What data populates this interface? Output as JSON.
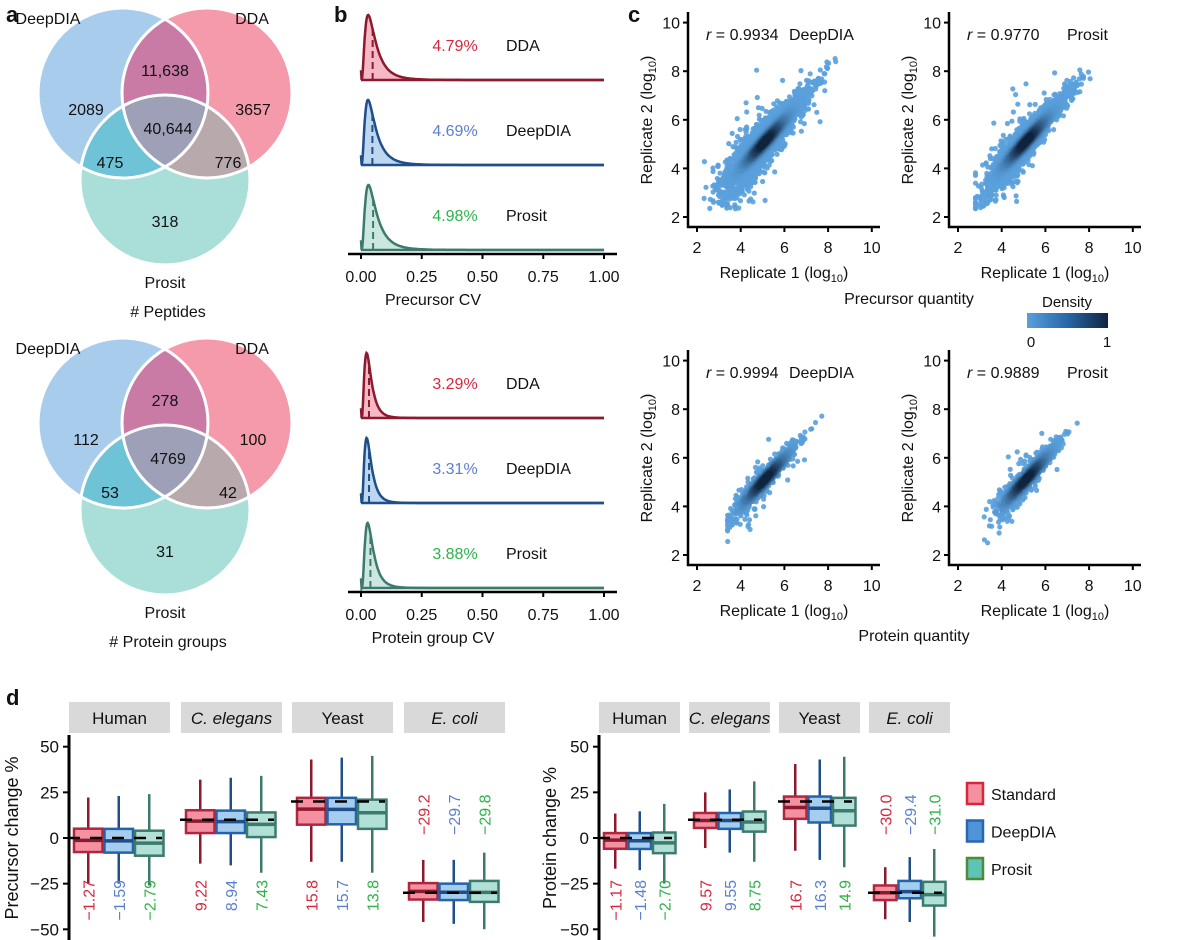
{
  "panel_labels": [
    "a",
    "b",
    "c",
    "d"
  ],
  "colors": {
    "dda": "#f49aaa",
    "deepdia": "#a8cdec",
    "prosit": "#aadfd9",
    "dda_deepdia": "#c97ba6",
    "all_three": "#9da0b6",
    "deepdia_prosit": "#6fc3d6",
    "dda_prosit": "#b8a9ad",
    "standard_line": "#8b1a2e",
    "deepdia_line": "#1f4e89",
    "prosit_line": "#3d7a6e",
    "standard_text": "#d7263d",
    "deepdia_text": "#5b7fcf",
    "prosit_text": "#2db34a"
  },
  "chart_data": [
    {
      "type": "venn",
      "sets": [
        "DeepDIA",
        "DDA",
        "Prosit"
      ],
      "regions": [
        {
          "sets": [
            "DeepDIA"
          ],
          "label": "2089"
        },
        {
          "sets": [
            "DeepDIA",
            "DDA"
          ],
          "label": "11,638"
        },
        {
          "sets": [
            "DDA"
          ],
          "label": "3657"
        },
        {
          "sets": [
            "DeepDIA",
            "DDA",
            "Prosit"
          ],
          "label": "40,644"
        },
        {
          "sets": [
            "DeepDIA",
            "Prosit"
          ],
          "label": "475"
        },
        {
          "sets": [
            "DDA",
            "Prosit"
          ],
          "label": "776"
        },
        {
          "sets": [
            "Prosit"
          ],
          "label": "318"
        }
      ],
      "caption": "# Peptides"
    },
    {
      "type": "venn",
      "sets": [
        "DeepDIA",
        "DDA",
        "Prosit"
      ],
      "regions": [
        {
          "sets": [
            "DeepDIA"
          ],
          "label": "112"
        },
        {
          "sets": [
            "DeepDIA",
            "DDA"
          ],
          "label": "278"
        },
        {
          "sets": [
            "DDA"
          ],
          "label": "100"
        },
        {
          "sets": [
            "DeepDIA",
            "DDA",
            "Prosit"
          ],
          "label": "4769"
        },
        {
          "sets": [
            "DeepDIA",
            "Prosit"
          ],
          "label": "53"
        },
        {
          "sets": [
            "DDA",
            "Prosit"
          ],
          "label": "42"
        },
        {
          "sets": [
            "Prosit"
          ],
          "label": "31"
        }
      ],
      "caption": "# Protein groups"
    },
    {
      "type": "density",
      "xlabel": "Precursor CV",
      "xlim": [
        0,
        1
      ],
      "xticks": [
        "0.00",
        "0.25",
        "0.50",
        "0.75",
        "1.00"
      ],
      "series": [
        {
          "name": "DDA",
          "median": 0.0479,
          "median_label": "4.79%",
          "line": "#8b1a2e",
          "fill": "#f5b8c4",
          "text": "#d7263d"
        },
        {
          "name": "DeepDIA",
          "median": 0.0469,
          "median_label": "4.69%",
          "line": "#1f4e89",
          "fill": "#bcd7ef",
          "text": "#5b7fcf"
        },
        {
          "name": "Prosit",
          "median": 0.0498,
          "median_label": "4.98%",
          "line": "#3d7a6e",
          "fill": "#cce6e0",
          "text": "#2db34a"
        }
      ]
    },
    {
      "type": "density",
      "xlabel": "Protein group CV",
      "xlim": [
        0,
        1
      ],
      "xticks": [
        "0.00",
        "0.25",
        "0.50",
        "0.75",
        "1.00"
      ],
      "series": [
        {
          "name": "DDA",
          "median": 0.0329,
          "median_label": "3.29%",
          "line": "#8b1a2e",
          "fill": "#f5b8c4",
          "text": "#d7263d"
        },
        {
          "name": "DeepDIA",
          "median": 0.0331,
          "median_label": "3.31%",
          "line": "#1f4e89",
          "fill": "#bcd7ef",
          "text": "#5b7fcf"
        },
        {
          "name": "Prosit",
          "median": 0.0388,
          "median_label": "3.88%",
          "line": "#3d7a6e",
          "fill": "#cce6e0",
          "text": "#2db34a"
        }
      ]
    },
    {
      "type": "scatter",
      "group": "Precursor quantity",
      "r_symbol": "r",
      "r_value": " = 0.9934",
      "name": "DeepDIA",
      "xlabel": {
        "main": "Replicate 1 (log",
        "sub": "10",
        "end": ")"
      },
      "ylabel": {
        "main": "Replicate 2 (log",
        "sub": "10",
        "end": ")"
      },
      "xlim": [
        2,
        10
      ],
      "ylim": [
        2,
        10
      ],
      "ticks": [
        "2",
        "4",
        "6",
        "8",
        "10"
      ]
    },
    {
      "type": "scatter",
      "group": "Precursor quantity",
      "r_symbol": "r",
      "r_value": " = 0.9770",
      "name": "Prosit",
      "xlabel": {
        "main": "Replicate 1 (log",
        "sub": "10",
        "end": ")"
      },
      "ylabel": {
        "main": "Replicate 2 (log",
        "sub": "10",
        "end": ")"
      },
      "xlim": [
        2,
        10
      ],
      "ylim": [
        2,
        10
      ],
      "ticks": [
        "2",
        "4",
        "6",
        "8",
        "10"
      ]
    },
    {
      "type": "scatter",
      "group": "Protein quantity",
      "r_symbol": "r",
      "r_value": " = 0.9994",
      "name": "DeepDIA",
      "xlabel": {
        "main": "Replicate 1 (log",
        "sub": "10",
        "end": ")"
      },
      "ylabel": {
        "main": "Replicate 2 (log",
        "sub": "10",
        "end": ")"
      },
      "xlim": [
        2,
        10
      ],
      "ylim": [
        2,
        10
      ],
      "ticks": [
        "2",
        "4",
        "6",
        "8",
        "10"
      ]
    },
    {
      "type": "scatter",
      "group": "Protein quantity",
      "r_symbol": "r",
      "r_value": " = 0.9889",
      "name": "Prosit",
      "xlabel": {
        "main": "Replicate 1 (log",
        "sub": "10",
        "end": ")"
      },
      "ylabel": {
        "main": "Replicate 2 (log",
        "sub": "10",
        "end": ")"
      },
      "xlim": [
        2,
        10
      ],
      "ylim": [
        2,
        10
      ],
      "ticks": [
        "2",
        "4",
        "6",
        "8",
        "10"
      ]
    },
    {
      "type": "box",
      "ylabel": "Precursor change %",
      "ylim": [
        -55,
        55
      ],
      "yticks": [
        "50",
        "25",
        "0",
        "−25",
        "−50"
      ],
      "ytick_values": [
        50,
        25,
        0,
        -25,
        -50
      ],
      "facets": [
        {
          "name": "Human",
          "italic": false,
          "expected": 0,
          "groups": [
            {
              "series": "Standard",
              "whisker_low": -25,
              "q1": -7.7,
              "median": -1.27,
              "q3": 5.1,
              "whisker_high": 22.2,
              "label": "−1.27"
            },
            {
              "series": "DeepDIA",
              "whisker_low": -25,
              "q1": -8,
              "median": -1.59,
              "q3": 5,
              "whisker_high": 23,
              "label": "−1.59"
            },
            {
              "series": "Prosit",
              "whisker_low": -26,
              "q1": -9.7,
              "median": -2.79,
              "q3": 4,
              "whisker_high": 24,
              "label": "−2.79"
            }
          ]
        },
        {
          "name": "C. elegans",
          "italic": true,
          "expected": 10,
          "groups": [
            {
              "series": "Standard",
              "whisker_low": -14,
              "q1": 2.7,
              "median": 9.22,
              "q3": 15.2,
              "whisker_high": 32,
              "label": "9.22"
            },
            {
              "series": "DeepDIA",
              "whisker_low": -15,
              "q1": 2.7,
              "median": 8.94,
              "q3": 15,
              "whisker_high": 33,
              "label": "8.94"
            },
            {
              "series": "Prosit",
              "whisker_low": -19,
              "q1": 0.5,
              "median": 7.43,
              "q3": 14,
              "whisker_high": 34,
              "label": "7.43"
            }
          ]
        },
        {
          "name": "Yeast",
          "italic": false,
          "expected": 20,
          "groups": [
            {
              "series": "Standard",
              "whisker_low": -13,
              "q1": 7.3,
              "median": 15.8,
              "q3": 22,
              "whisker_high": 43,
              "label": "15.8"
            },
            {
              "series": "DeepDIA",
              "whisker_low": -13,
              "q1": 7.5,
              "median": 15.7,
              "q3": 22,
              "whisker_high": 44,
              "label": "15.7"
            },
            {
              "series": "Prosit",
              "whisker_low": -19,
              "q1": 5,
              "median": 13.8,
              "q3": 21,
              "whisker_high": 45,
              "label": "13.8"
            }
          ]
        },
        {
          "name": "E. coli",
          "italic": true,
          "expected": -30,
          "groups": [
            {
              "series": "Standard",
              "whisker_low": -46,
              "q1": -33.7,
              "median": -29.2,
              "q3": -24.7,
              "whisker_high": -12,
              "label": "−29.2"
            },
            {
              "series": "DeepDIA",
              "whisker_low": -47,
              "q1": -34,
              "median": -29.7,
              "q3": -25,
              "whisker_high": -12,
              "label": "−29.7"
            },
            {
              "series": "Prosit",
              "whisker_low": -50,
              "q1": -35,
              "median": -29.8,
              "q3": -23.5,
              "whisker_high": -8,
              "label": "−29.8"
            }
          ]
        }
      ]
    },
    {
      "type": "box",
      "ylabel": "Protein change %",
      "ylim": [
        -55,
        55
      ],
      "yticks": [
        "50",
        "25",
        "0",
        "−25",
        "−50"
      ],
      "ytick_values": [
        50,
        25,
        0,
        -25,
        -50
      ],
      "facets": [
        {
          "name": "Human",
          "italic": false,
          "expected": 0,
          "groups": [
            {
              "series": "Standard",
              "whisker_low": -16.8,
              "q1": -5.9,
              "median": -1.17,
              "q3": 2.7,
              "whisker_high": 13.4,
              "label": "−1.17"
            },
            {
              "series": "DeepDIA",
              "whisker_low": -17.6,
              "q1": -6,
              "median": -1.48,
              "q3": 2.7,
              "whisker_high": 14.6,
              "label": "−1.48"
            },
            {
              "series": "Prosit",
              "whisker_low": -25,
              "q1": -8.3,
              "median": -2.7,
              "q3": 3,
              "whisker_high": 18.7,
              "label": "−2.70"
            }
          ]
        },
        {
          "name": "C. elegans",
          "italic": true,
          "expected": 10,
          "groups": [
            {
              "series": "Standard",
              "whisker_low": -5.5,
              "q1": 5.5,
              "median": 9.57,
              "q3": 13.7,
              "whisker_high": 25,
              "label": "9.57"
            },
            {
              "series": "DeepDIA",
              "whisker_low": -8,
              "q1": 5,
              "median": 9.55,
              "q3": 13.7,
              "whisker_high": 26.6,
              "label": "9.55"
            },
            {
              "series": "Prosit",
              "whisker_low": -13,
              "q1": 3.5,
              "median": 8.75,
              "q3": 14.5,
              "whisker_high": 31,
              "label": "8.75"
            }
          ]
        },
        {
          "name": "Yeast",
          "italic": false,
          "expected": 20,
          "groups": [
            {
              "series": "Standard",
              "whisker_low": -7,
              "q1": 10.5,
              "median": 16.7,
              "q3": 22.7,
              "whisker_high": 40.5,
              "label": "16.7"
            },
            {
              "series": "DeepDIA",
              "whisker_low": -12,
              "q1": 8.5,
              "median": 16.3,
              "q3": 22.7,
              "whisker_high": 43,
              "label": "16.3"
            },
            {
              "series": "Prosit",
              "whisker_low": -16,
              "q1": 6.8,
              "median": 14.9,
              "q3": 22,
              "whisker_high": 44.5,
              "label": "14.9"
            }
          ]
        },
        {
          "name": "E. coli",
          "italic": true,
          "expected": -30,
          "groups": [
            {
              "series": "Standard",
              "whisker_low": -44.5,
              "q1": -34,
              "median": -30.0,
              "q3": -26,
              "whisker_high": -16,
              "label": "−30.0"
            },
            {
              "series": "DeepDIA",
              "whisker_low": -46,
              "q1": -33,
              "median": -29.4,
              "q3": -23.5,
              "whisker_high": -10.5,
              "label": "−29.4"
            },
            {
              "series": "Prosit",
              "whisker_low": -54,
              "q1": -37,
              "median": -31.0,
              "q3": -24,
              "whisker_high": -6,
              "label": "−31.0"
            }
          ]
        }
      ]
    }
  ],
  "density_legend": {
    "title": "Density",
    "min": "0",
    "max": "1",
    "low_color": "#5aa0dc",
    "high_color": "#10253f"
  },
  "box_legend": [
    {
      "name": "Standard",
      "fill": "#f4909f",
      "stroke": "#d7263d"
    },
    {
      "name": "DeepDIA",
      "fill": "#4f94d8",
      "stroke": "#2767b0"
    },
    {
      "name": "Prosit",
      "fill": "#5cc5b5",
      "stroke": "#4f8a3b"
    }
  ]
}
